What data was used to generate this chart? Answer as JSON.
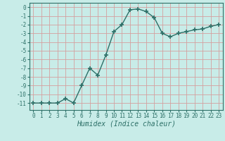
{
  "x": [
    0,
    1,
    2,
    3,
    4,
    5,
    6,
    7,
    8,
    9,
    10,
    11,
    12,
    13,
    14,
    15,
    16,
    17,
    18,
    19,
    20,
    21,
    22,
    23
  ],
  "y": [
    -11,
    -11,
    -11,
    -11,
    -10.5,
    -11,
    -9,
    -7,
    -7.8,
    -5.5,
    -2.8,
    -2,
    -0.3,
    -0.2,
    -0.5,
    -1.2,
    -3,
    -3.4,
    -3,
    -2.8,
    -2.6,
    -2.5,
    -2.2,
    -2
  ],
  "line_color": "#2d7068",
  "marker": "+",
  "marker_size": 4,
  "marker_lw": 1.2,
  "bg_color": "#c8ece8",
  "grid_color": "#d4a0a0",
  "xlabel": "Humidex (Indice chaleur)",
  "xlabel_fontsize": 7,
  "xlim": [
    -0.5,
    23.5
  ],
  "ylim": [
    -11.8,
    0.5
  ],
  "yticks": [
    0,
    -1,
    -2,
    -3,
    -4,
    -5,
    -6,
    -7,
    -8,
    -9,
    -10,
    -11
  ],
  "xtick_labels": [
    "0",
    "1",
    "2",
    "3",
    "4",
    "5",
    "6",
    "7",
    "8",
    "9",
    "10",
    "11",
    "12",
    "13",
    "14",
    "15",
    "16",
    "17",
    "18",
    "19",
    "20",
    "21",
    "22",
    "23"
  ],
  "tick_fontsize": 5.5,
  "linewidth": 1.0
}
